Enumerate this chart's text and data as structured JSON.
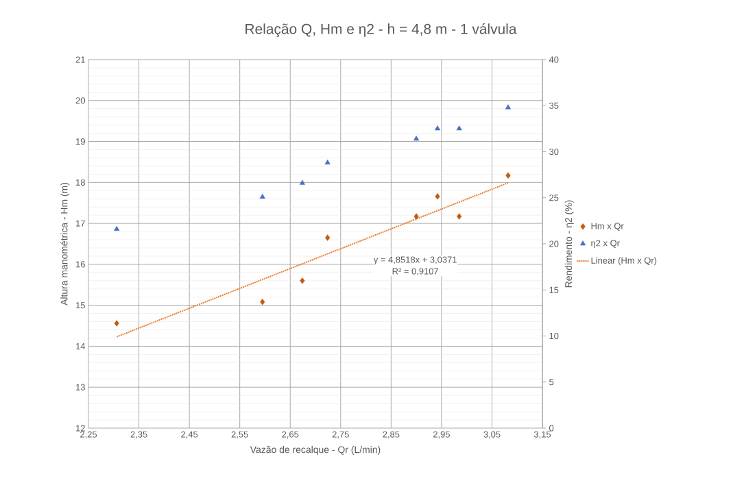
{
  "chart_data": {
    "type": "scatter",
    "title": "Relação Q, Hm e η2 - h = 4,8 m - 1 válvula",
    "xlabel": "Vazão de recalque - Qr (L/min)",
    "ylabel": "Altura manométrica - Hm (m)",
    "y2label": "Rendimento - η2 (%)",
    "xlim": [
      2.25,
      3.15
    ],
    "xticks": [
      {
        "value": 2.25,
        "label": "2,25"
      },
      {
        "value": 2.35,
        "label": "2,35"
      },
      {
        "value": 2.45,
        "label": "2,45"
      },
      {
        "value": 2.55,
        "label": "2,55"
      },
      {
        "value": 2.65,
        "label": "2,65"
      },
      {
        "value": 2.75,
        "label": "2,75"
      },
      {
        "value": 2.85,
        "label": "2,85"
      },
      {
        "value": 2.95,
        "label": "2,95"
      },
      {
        "value": 3.05,
        "label": "3,05"
      },
      {
        "value": 3.15,
        "label": "3,15"
      }
    ],
    "ylim": [
      12,
      21
    ],
    "yticks": [
      12,
      13,
      14,
      15,
      16,
      17,
      18,
      19,
      20,
      21
    ],
    "y2lim": [
      0,
      40
    ],
    "y2ticks": [
      0,
      5,
      10,
      15,
      20,
      25,
      30,
      35,
      40
    ],
    "grid": true,
    "legend": "right",
    "series": [
      {
        "name": "Hm x Qr",
        "marker": "diamond",
        "color": "#c55a11",
        "x": [
          2.306,
          2.595,
          2.674,
          2.724,
          2.9,
          2.942,
          2.985,
          3.082
        ],
        "values": [
          14.56,
          15.08,
          15.6,
          16.65,
          17.17,
          17.66,
          17.17,
          18.17
        ]
      },
      {
        "name": "η2 x Qr",
        "marker": "triangle",
        "axis": "y2",
        "color": "#4472c4",
        "x": [
          2.306,
          2.595,
          2.674,
          2.724,
          2.9,
          2.942,
          2.985,
          3.082
        ],
        "values": [
          21.6,
          25.1,
          26.6,
          28.8,
          31.4,
          32.5,
          32.5,
          34.8
        ]
      },
      {
        "name": "Linear (Hm x Qr)",
        "type": "line",
        "marker": "none",
        "line_style": "dotted",
        "color": "#ed7d31",
        "x": [
          2.306,
          3.082
        ],
        "values": [
          14.23,
          17.99
        ]
      }
    ],
    "annotations": [
      "y = 4,8518x + 3,0371",
      "R² = 0,9107"
    ]
  }
}
